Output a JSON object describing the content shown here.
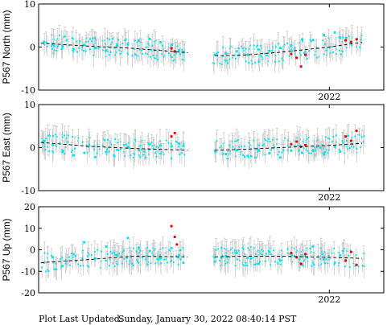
{
  "chart_data": [
    {
      "type": "scatter",
      "ylabel": "P567 North (mm)",
      "ylim": [
        -10,
        10
      ],
      "yticks": [
        10,
        0,
        -10
      ],
      "xlim": [
        2019.33,
        2022.5
      ],
      "xtick_labels": [
        {
          "x": 2022.0,
          "label": "2022"
        }
      ],
      "grid": false,
      "series": [
        {
          "color": "#00e5ee",
          "points": [
            [
              2019.38,
              1.2
            ],
            [
              2019.46,
              0.8
            ],
            [
              2019.55,
              0.2
            ],
            [
              2019.65,
              -0.5
            ],
            [
              2019.75,
              0.5
            ],
            [
              2019.85,
              -0.2
            ],
            [
              2019.95,
              -0.8
            ],
            [
              2020.05,
              0.3
            ],
            [
              2020.15,
              0.6
            ],
            [
              2020.25,
              1.5
            ],
            [
              2020.35,
              1.9
            ],
            [
              2020.45,
              1.1
            ],
            [
              2020.55,
              0.5
            ],
            [
              2020.62,
              -0.7
            ],
            [
              2020.66,
              -1.2
            ],
            [
              2020.95,
              -1.8
            ],
            [
              2021.05,
              -1.5
            ],
            [
              2021.15,
              -1.0
            ],
            [
              2021.25,
              -1.8
            ],
            [
              2021.35,
              -0.6
            ],
            [
              2021.45,
              -0.9
            ],
            [
              2021.55,
              -0.2
            ],
            [
              2021.65,
              0.4
            ],
            [
              2021.75,
              1.8
            ],
            [
              2021.85,
              1.6
            ],
            [
              2021.95,
              2.8
            ],
            [
              2022.05,
              3.4
            ],
            [
              2022.1,
              2.2
            ]
          ]
        },
        {
          "color": "#ee0000",
          "points": [
            [
              2020.55,
              -0.3
            ],
            [
              2020.58,
              -1.0
            ],
            [
              2021.65,
              -1.6
            ],
            [
              2021.7,
              -2.5
            ],
            [
              2021.74,
              -4.5
            ],
            [
              2021.78,
              -1.8
            ],
            [
              2022.15,
              1.6
            ],
            [
              2022.2,
              1.2
            ],
            [
              2022.25,
              1.8
            ]
          ]
        }
      ],
      "trend": [
        [
          2019.35,
          0.9
        ],
        [
          2019.8,
          0.2
        ],
        [
          2020.2,
          -0.3
        ],
        [
          2020.7,
          -1.3
        ],
        [
          2020.95,
          -2.0
        ],
        [
          2021.2,
          -1.9
        ],
        [
          2021.55,
          -1.2
        ],
        [
          2022.0,
          0.0
        ],
        [
          2022.3,
          1.1
        ]
      ]
    },
    {
      "type": "scatter",
      "ylabel": "P567 East (mm)",
      "ylim": [
        -10,
        10
      ],
      "yticks": [
        10,
        0,
        -10
      ],
      "xlim": [
        2019.33,
        2022.5
      ],
      "xtick_labels": [
        {
          "x": 2022.0,
          "label": "2022"
        }
      ],
      "grid": false,
      "series": [
        {
          "color": "#00e5ee",
          "points": [
            [
              2019.38,
              1.5
            ],
            [
              2019.46,
              0.6
            ],
            [
              2019.55,
              -1.0
            ],
            [
              2019.65,
              -1.8
            ],
            [
              2019.75,
              -1.2
            ],
            [
              2019.85,
              -2.2
            ],
            [
              2019.95,
              -1.0
            ],
            [
              2020.05,
              -0.5
            ],
            [
              2020.15,
              0.2
            ],
            [
              2020.25,
              -0.6
            ],
            [
              2020.35,
              0.8
            ],
            [
              2020.45,
              0.5
            ],
            [
              2020.55,
              0.3
            ],
            [
              2020.62,
              0.9
            ],
            [
              2020.66,
              0.4
            ],
            [
              2020.95,
              -0.8
            ],
            [
              2021.05,
              -1.5
            ],
            [
              2021.15,
              -0.6
            ],
            [
              2021.25,
              -1.9
            ],
            [
              2021.35,
              -0.5
            ],
            [
              2021.45,
              -1.3
            ],
            [
              2021.55,
              -2.3
            ],
            [
              2021.65,
              -0.7
            ],
            [
              2021.75,
              -1.2
            ],
            [
              2021.85,
              -0.6
            ],
            [
              2021.95,
              -1.5
            ],
            [
              2022.05,
              0.2
            ],
            [
              2022.1,
              -0.9
            ]
          ]
        },
        {
          "color": "#ee0000",
          "points": [
            [
              2020.55,
              2.6
            ],
            [
              2020.58,
              3.4
            ],
            [
              2021.65,
              0.8
            ],
            [
              2021.7,
              1.4
            ],
            [
              2021.74,
              0.2
            ],
            [
              2021.78,
              0.6
            ],
            [
              2022.15,
              2.6
            ],
            [
              2022.2,
              1.6
            ],
            [
              2022.25,
              3.9
            ]
          ]
        }
      ],
      "trend": [
        [
          2019.35,
          1.2
        ],
        [
          2019.8,
          0.3
        ],
        [
          2020.2,
          -0.2
        ],
        [
          2020.7,
          -0.6
        ],
        [
          2020.95,
          -0.6
        ],
        [
          2021.2,
          -0.4
        ],
        [
          2021.55,
          0.0
        ],
        [
          2022.0,
          0.5
        ],
        [
          2022.3,
          1.0
        ]
      ]
    },
    {
      "type": "scatter",
      "ylabel": "P567 Up (mm)",
      "ylim": [
        -20,
        20
      ],
      "yticks": [
        20,
        10,
        0,
        -10,
        -20
      ],
      "xlim": [
        2019.33,
        2022.5
      ],
      "xtick_labels": [
        {
          "x": 2022.0,
          "label": "2022"
        }
      ],
      "grid": false,
      "series": [
        {
          "color": "#00e5ee",
          "points": [
            [
              2019.38,
              -6.0
            ],
            [
              2019.46,
              -3.5
            ],
            [
              2019.55,
              -7.5
            ],
            [
              2019.65,
              -2.0
            ],
            [
              2019.75,
              3.5
            ],
            [
              2019.85,
              -4.0
            ],
            [
              2019.95,
              1.5
            ],
            [
              2020.05,
              -2.5
            ],
            [
              2020.15,
              5.5
            ],
            [
              2020.25,
              1.0
            ],
            [
              2020.35,
              -0.5
            ],
            [
              2020.45,
              -4.0
            ],
            [
              2020.55,
              0.8
            ],
            [
              2020.62,
              -2.5
            ],
            [
              2020.66,
              -6.0
            ],
            [
              2020.95,
              -5.5
            ],
            [
              2021.05,
              -3.0
            ],
            [
              2021.15,
              -1.5
            ],
            [
              2021.25,
              -3.8
            ],
            [
              2021.35,
              -6.5
            ],
            [
              2021.45,
              -1.0
            ],
            [
              2021.55,
              -5.0
            ],
            [
              2021.65,
              -2.0
            ],
            [
              2021.75,
              -7.0
            ],
            [
              2021.85,
              1.5
            ],
            [
              2021.95,
              -4.5
            ],
            [
              2022.05,
              -6.0
            ],
            [
              2022.1,
              -2.5
            ]
          ]
        },
        {
          "color": "#ee0000",
          "points": [
            [
              2020.55,
              11.0
            ],
            [
              2020.58,
              6.0
            ],
            [
              2020.6,
              2.5
            ],
            [
              2021.65,
              -1.5
            ],
            [
              2021.7,
              -3.5
            ],
            [
              2021.74,
              -6.5
            ],
            [
              2021.78,
              -2.0
            ],
            [
              2022.15,
              -5.0
            ],
            [
              2022.2,
              -1.0
            ],
            [
              2022.25,
              -7.0
            ]
          ]
        }
      ],
      "trend": [
        [
          2019.35,
          -6.0
        ],
        [
          2019.8,
          -4.5
        ],
        [
          2020.2,
          -3.0
        ],
        [
          2020.7,
          -3.3
        ],
        [
          2020.95,
          -3.3
        ],
        [
          2021.2,
          -3.0
        ],
        [
          2021.55,
          -3.0
        ],
        [
          2022.0,
          -3.5
        ],
        [
          2022.3,
          -4.0
        ]
      ]
    }
  ],
  "footer": {
    "label": "Plot Last Updated:",
    "timestamp": "Sunday, January 30, 2022 08:40:14 PST"
  }
}
